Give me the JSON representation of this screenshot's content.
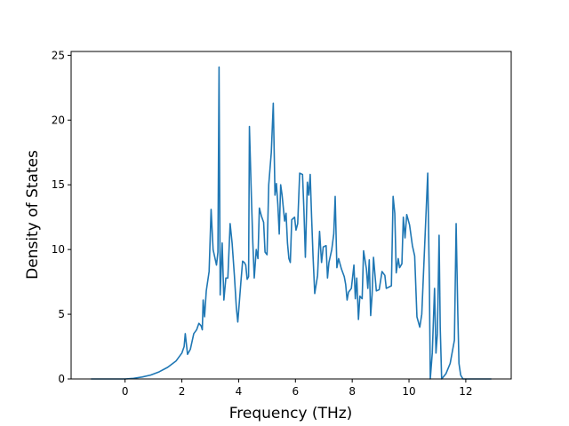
{
  "chart_data": {
    "type": "line",
    "xlabel": "Frequency (THz)",
    "ylabel": "Density of States",
    "color": "#1f77b4",
    "x": [
      -1.2,
      -0.5,
      0,
      0.3,
      0.6,
      0.9,
      1.2,
      1.5,
      1.8,
      2.0,
      2.08,
      2.12,
      2.2,
      2.3,
      2.42,
      2.52,
      2.6,
      2.68,
      2.72,
      2.75,
      2.8,
      2.86,
      2.96,
      3.03,
      3.1,
      3.15,
      3.22,
      3.27,
      3.31,
      3.35,
      3.42,
      3.48,
      3.55,
      3.62,
      3.7,
      3.77,
      3.85,
      3.92,
      3.97,
      4.02,
      4.08,
      4.14,
      4.2,
      4.25,
      4.3,
      4.35,
      4.38,
      4.45,
      4.5,
      4.55,
      4.62,
      4.68,
      4.73,
      4.8,
      4.88,
      4.93,
      5.0,
      5.06,
      5.15,
      5.22,
      5.28,
      5.33,
      5.38,
      5.43,
      5.48,
      5.53,
      5.62,
      5.67,
      5.72,
      5.77,
      5.82,
      5.87,
      5.97,
      6.02,
      6.08,
      6.15,
      6.25,
      6.3,
      6.35,
      6.42,
      6.47,
      6.52,
      6.57,
      6.62,
      6.68,
      6.78,
      6.85,
      6.92,
      6.98,
      7.08,
      7.13,
      7.18,
      7.28,
      7.35,
      7.4,
      7.46,
      7.52,
      7.62,
      7.72,
      7.77,
      7.82,
      7.87,
      7.97,
      8.06,
      8.11,
      8.16,
      8.22,
      8.27,
      8.35,
      8.4,
      8.5,
      8.55,
      8.6,
      8.65,
      8.7,
      8.75,
      8.85,
      8.95,
      9.05,
      9.15,
      9.2,
      9.38,
      9.44,
      9.5,
      9.55,
      9.62,
      9.67,
      9.75,
      9.8,
      9.86,
      9.92,
      10.02,
      10.12,
      10.2,
      10.28,
      10.38,
      10.45,
      10.66,
      10.72,
      10.75,
      10.82,
      10.9,
      10.95,
      11.0,
      11.06,
      11.1,
      11.15,
      11.3,
      11.45,
      11.6,
      11.66,
      11.72,
      11.76,
      11.82,
      11.9,
      12.9
    ],
    "values": [
      0,
      0,
      0,
      0.05,
      0.15,
      0.3,
      0.55,
      0.9,
      1.4,
      2.0,
      2.5,
      3.5,
      1.9,
      2.3,
      3.5,
      3.8,
      4.3,
      4.1,
      3.8,
      6.1,
      4.8,
      6.8,
      8.3,
      13.1,
      10,
      9.5,
      8.8,
      9.8,
      24.1,
      6.5,
      10.5,
      6.1,
      7.8,
      7.8,
      12.0,
      10.5,
      8,
      5.5,
      4.4,
      5.8,
      7.5,
      9.1,
      9.0,
      8.8,
      7.7,
      7.9,
      19.5,
      14,
      10.5,
      7.8,
      10.0,
      9.3,
      13.2,
      12.6,
      12.1,
      9.8,
      9.6,
      15,
      17.5,
      21.3,
      14.2,
      15.1,
      13.5,
      11.2,
      15,
      14.2,
      12.2,
      12.8,
      10.5,
      9.3,
      9,
      12.3,
      12.5,
      11.5,
      12,
      15.9,
      15.8,
      13,
      9.4,
      15.2,
      14.2,
      15.8,
      12.5,
      9.5,
      6.6,
      8.0,
      11.4,
      9.0,
      10.2,
      10.3,
      7.8,
      9,
      10,
      11.2,
      14.1,
      8.6,
      9.3,
      8.5,
      7.9,
      7.3,
      6.1,
      6.7,
      7.0,
      8.8,
      6.2,
      7.8,
      4.6,
      6.4,
      6.2,
      9.9,
      8.5,
      7.0,
      9.2,
      4.9,
      6.5,
      9.4,
      6.8,
      6.9,
      8.3,
      8.0,
      7.0,
      7.2,
      14.1,
      12.8,
      8.2,
      9.3,
      8.6,
      8.9,
      12.5,
      10.9,
      12.7,
      11.9,
      10.3,
      9.5,
      4.8,
      4.0,
      5.0,
      15.9,
      7,
      0,
      2,
      7.0,
      2.0,
      3.5,
      11.1,
      4,
      0,
      0.4,
      1.2,
      3,
      12.0,
      5,
      1.2,
      0.3,
      0,
      0
    ],
    "xlim": [
      -1.9,
      13.6
    ],
    "xticks": [
      0,
      2,
      4,
      6,
      8,
      10,
      12
    ],
    "ylim": [
      0,
      25.3
    ],
    "yticks": [
      0,
      5,
      10,
      15,
      20,
      25
    ]
  }
}
